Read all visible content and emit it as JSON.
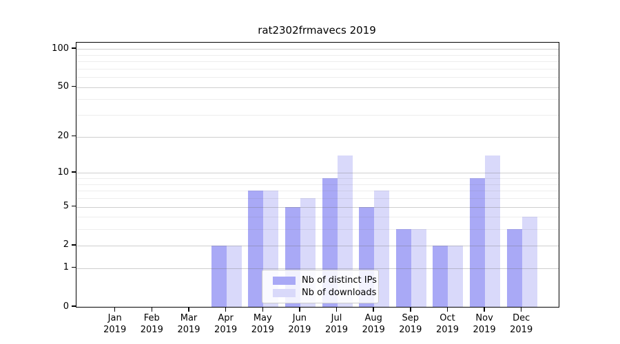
{
  "title": "rat2302frmavecs 2019",
  "chart_data": {
    "type": "bar",
    "title": "rat2302frmavecs 2019",
    "categories": [
      "Jan 2019",
      "Feb 2019",
      "Mar 2019",
      "Apr 2019",
      "May 2019",
      "Jun 2019",
      "Jul 2019",
      "Aug 2019",
      "Sep 2019",
      "Oct 2019",
      "Nov 2019",
      "Dec 2019"
    ],
    "x_tick_month_line": [
      "Jan",
      "Feb",
      "Mar",
      "Apr",
      "May",
      "Jun",
      "Jul",
      "Aug",
      "Sep",
      "Oct",
      "Nov",
      "Dec"
    ],
    "x_tick_year_line": [
      "2019",
      "2019",
      "2019",
      "2019",
      "2019",
      "2019",
      "2019",
      "2019",
      "2019",
      "2019",
      "2019",
      "2019"
    ],
    "series": [
      {
        "name": "Nb of distinct IPs",
        "color": "#a9a9f6",
        "values": [
          0,
          0,
          0,
          2,
          7,
          5,
          9,
          5,
          3,
          2,
          9,
          3
        ]
      },
      {
        "name": "Nb of downloads",
        "color": "#d9d9fa",
        "values": [
          0,
          0,
          0,
          2,
          7,
          6,
          14,
          7,
          3,
          2,
          14,
          4
        ]
      }
    ],
    "xlabel": "",
    "ylabel": "",
    "y_axis": {
      "scale": "log10(value+1)",
      "major_ticks": [
        0,
        1,
        2,
        5,
        10,
        20,
        50,
        100
      ],
      "minor_gridlines": [
        3,
        4,
        6,
        7,
        8,
        9,
        30,
        40,
        60,
        70,
        80,
        90
      ],
      "ylim_top_value": 112
    },
    "grid": true,
    "legend_position": "lower center"
  }
}
